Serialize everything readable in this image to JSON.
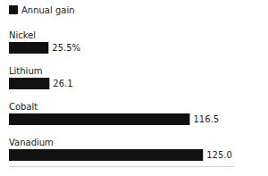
{
  "chart_data": {
    "type": "bar",
    "orientation": "horizontal",
    "categories": [
      "Nickel",
      "Lithium",
      "Cobalt",
      "Vanadium"
    ],
    "series": [
      {
        "name": "Annual gain",
        "color": "#111111",
        "values": [
          25.5,
          26.1,
          116.5,
          125.0
        ],
        "value_labels": [
          "25.5%",
          "26.1",
          "116.5",
          "125.0"
        ]
      }
    ],
    "xlim": [
      0,
      145
    ],
    "data_labels": true,
    "tick_labels": false,
    "legend": "top-left",
    "grid": false
  }
}
